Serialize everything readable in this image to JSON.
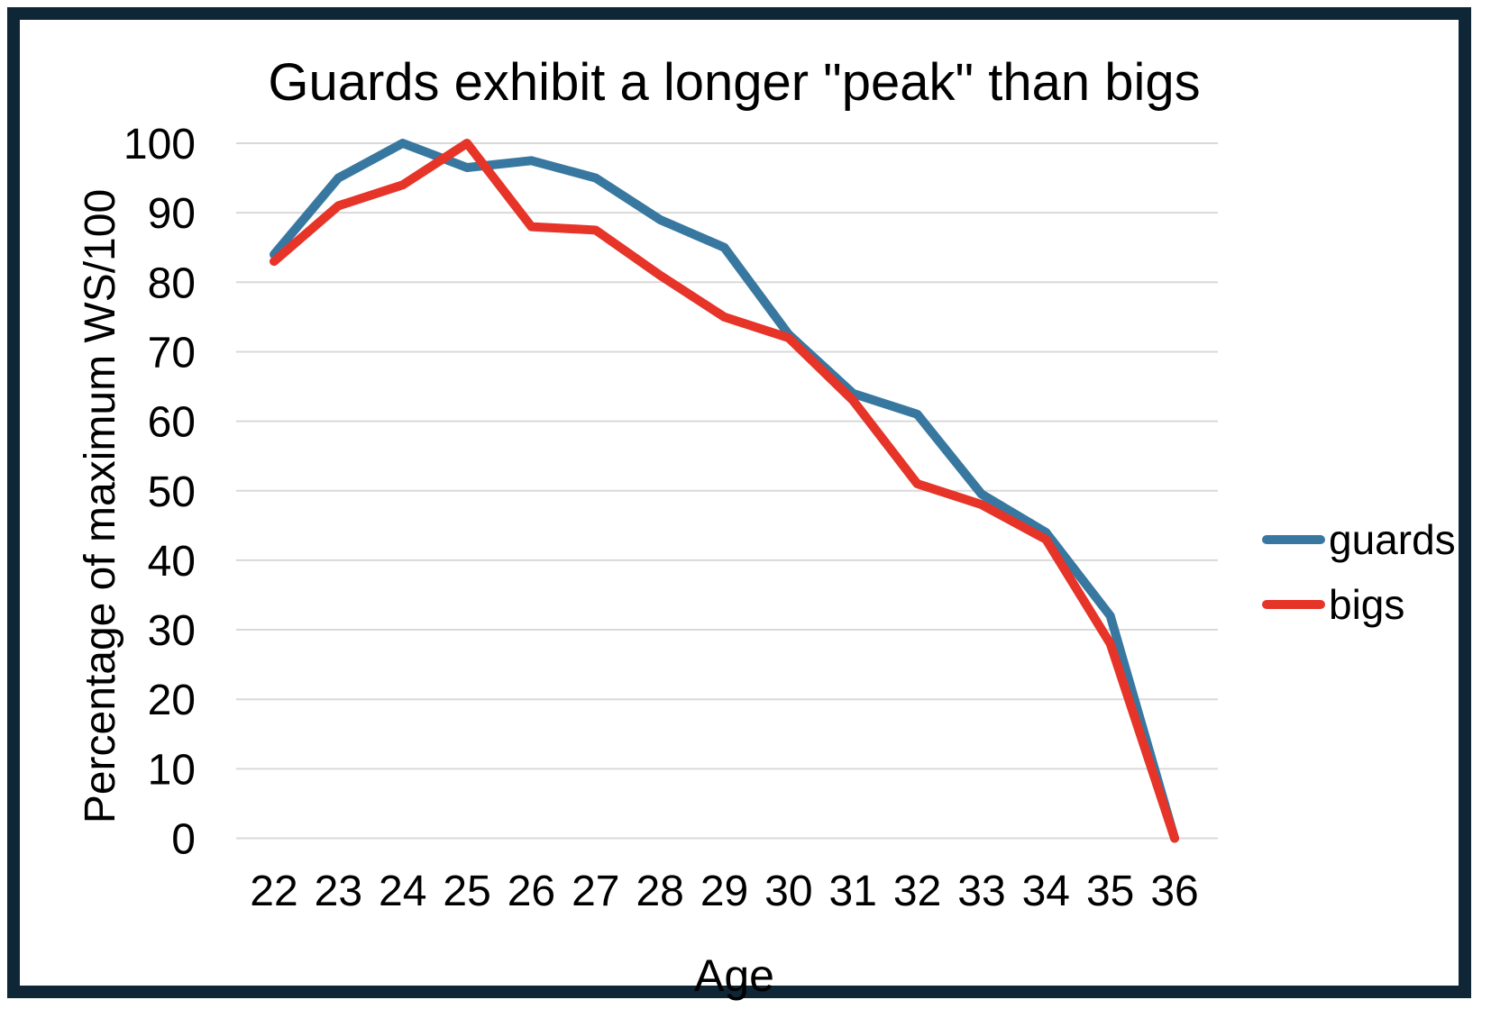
{
  "chart_data": {
    "type": "line",
    "title": "Guards exhibit a longer \"peak\" than bigs",
    "xlabel": "Age",
    "ylabel": "Percentage of maximum WS/100",
    "x": [
      22,
      23,
      24,
      25,
      26,
      27,
      28,
      29,
      30,
      31,
      32,
      33,
      34,
      35,
      36
    ],
    "series": [
      {
        "name": "guards",
        "color": "#3878a0",
        "values": [
          84,
          95,
          100,
          96.5,
          97.5,
          95,
          89,
          85,
          72.5,
          64,
          61,
          49.5,
          44,
          32,
          0
        ]
      },
      {
        "name": "bigs",
        "color": "#e63429",
        "values": [
          83,
          91,
          94,
          100,
          88,
          87.5,
          81,
          75,
          72,
          63,
          51,
          48,
          43,
          28,
          0
        ]
      }
    ],
    "ylim": [
      0,
      100
    ],
    "ytick_step": 10,
    "grid": "horizontal-only",
    "gridline_color": "#d9d9d9",
    "legend_position": "right",
    "frame_border_color": "#0e2635",
    "text_color": "#000000"
  }
}
